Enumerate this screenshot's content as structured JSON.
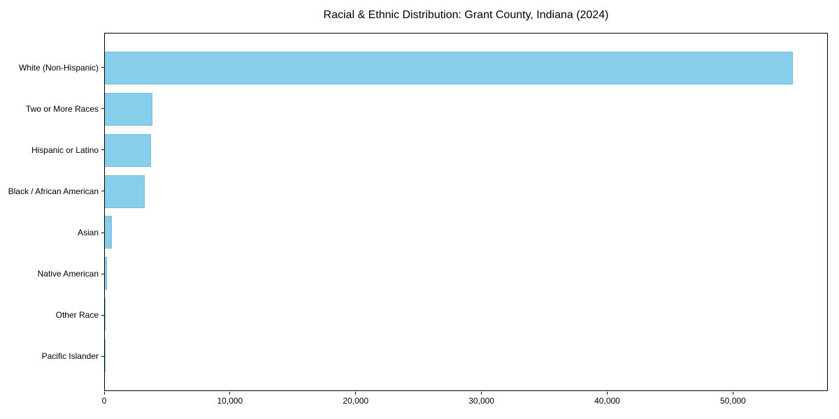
{
  "figure": {
    "background": "#ffffff"
  },
  "chart_data": {
    "type": "bar",
    "orientation": "horizontal",
    "title": "Racial & Ethnic Distribution: Grant County, Indiana (2024)",
    "categories": [
      "White (Non-Hispanic)",
      "Two or More Races",
      "Hispanic or Latino",
      "Black / African American",
      "Asian",
      "Native American",
      "Other Race",
      "Pacific Islander"
    ],
    "values": [
      54800,
      3800,
      3700,
      3150,
      550,
      170,
      60,
      25
    ],
    "xlabel": "",
    "ylabel": "",
    "xlim": [
      0,
      57540
    ],
    "xticks": [
      0,
      10000,
      20000,
      30000,
      40000,
      50000
    ],
    "xtick_labels": [
      "0",
      "10,000",
      "20,000",
      "30,000",
      "40,000",
      "50,000"
    ],
    "bar_color": "#87CEEB",
    "axis_color": "#000000",
    "grid": false,
    "legend": null
  }
}
